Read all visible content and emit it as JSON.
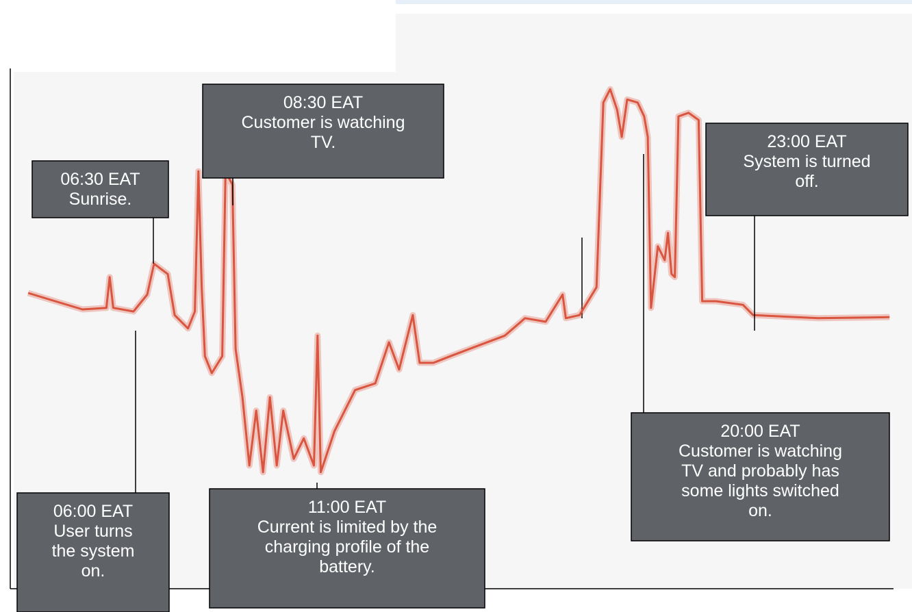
{
  "chart_data": {
    "type": "line",
    "x": [
      3.02,
      3.77,
      4.53,
      5.19,
      5.28,
      5.38,
      5.94,
      6.32,
      6.51,
      6.89,
      7.08,
      7.45,
      7.64,
      7.74,
      7.83,
      7.92,
      8.11,
      8.4,
      8.49,
      8.68,
      8.77,
      8.96,
      9.15,
      9.34,
      9.53,
      9.72,
      9.91,
      10.09,
      10.38,
      10.66,
      10.94,
      11.04,
      11.13,
      11.51,
      12.08,
      12.64,
      13.02,
      13.3,
      13.68,
      13.87,
      14.25,
      14.72,
      15.47,
      16.23,
      16.79,
      17.36,
      17.83,
      17.92,
      18.3,
      18.77,
      18.96,
      19.15,
      19.34,
      19.47,
      19.62,
      19.91,
      20.09,
      20.19,
      20.28,
      20.47,
      20.66,
      20.75,
      20.85,
      20.94,
      21.04,
      21.32,
      21.6,
      21.7,
      22.08,
      22.83,
      23.11,
      24.91,
      26.89
    ],
    "series": [
      {
        "color": "#d9553f",
        "values": [
          57.6,
          56,
          54.4,
          54.7,
          60.7,
          54.7,
          54,
          57.3,
          63.3,
          61.3,
          53.3,
          50.7,
          54,
          81.3,
          58.7,
          45.3,
          42,
          45.3,
          81.3,
          78.7,
          46.7,
          37.3,
          24,
          34.7,
          22.7,
          37.3,
          24,
          34.7,
          25.3,
          29.3,
          24,
          49.3,
          22.7,
          30.7,
          38.7,
          40,
          48,
          42.7,
          53.3,
          44,
          44,
          45.3,
          47.3,
          49.3,
          52.7,
          52,
          57.3,
          52.7,
          53.3,
          58.7,
          94.7,
          97.3,
          93.3,
          88,
          95.3,
          94.7,
          92,
          88,
          54.7,
          66.7,
          64,
          69.3,
          61.3,
          60.7,
          92,
          92.7,
          91.3,
          56,
          56,
          55.3,
          53.3,
          52.7,
          52.9
        ]
      }
    ],
    "xlim": [
      3,
      27
    ],
    "ylim": [
      0,
      100
    ],
    "annotations": [
      {
        "lines": [
          "08:30 EAT",
          "Customer is watching",
          "TV."
        ]
      },
      {
        "lines": [
          "06:30 EAT",
          "Sunrise."
        ]
      },
      {
        "lines": [
          "23:00 EAT",
          "System is turned",
          "off."
        ]
      },
      {
        "lines": [
          "20:00 EAT",
          "Customer is watching",
          "TV and probably has",
          "some lights switched",
          "on."
        ]
      },
      {
        "lines": [
          "06:00 EAT",
          "User turns",
          "the system",
          "on."
        ]
      },
      {
        "lines": [
          "11:00 EAT",
          "Current is limited by the",
          "charging profile of the",
          "battery."
        ]
      }
    ]
  }
}
